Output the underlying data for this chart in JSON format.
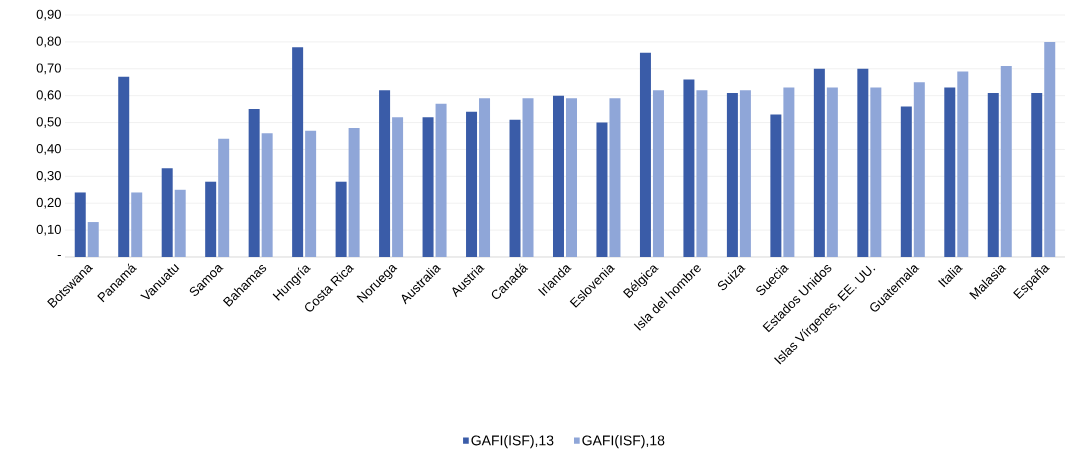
{
  "chart_data": {
    "type": "bar",
    "categories": [
      "Botswana",
      "Panamá",
      "Vanuatu",
      "Samoa",
      "Bahamas",
      "Hungría",
      "Costa Rica",
      "Noruega",
      "Australia",
      "Austria",
      "Canadá",
      "Irlanda",
      "Eslovenia",
      "Bélgica",
      "Isla del hombre",
      "Suiza",
      "Suecia",
      "Estados Unidos",
      "Islas Vírgenes, EE. UU.",
      "Guatemala",
      "Italia",
      "Malasia",
      "España"
    ],
    "series": [
      {
        "name": "GAFI(ISF),13",
        "color": "#3a5ca8",
        "values": [
          0.24,
          0.67,
          0.33,
          0.28,
          0.55,
          0.78,
          0.28,
          0.62,
          0.52,
          0.54,
          0.51,
          0.6,
          0.5,
          0.76,
          0.66,
          0.61,
          0.53,
          0.7,
          0.7,
          0.56,
          0.63,
          0.61,
          0.61
        ]
      },
      {
        "name": "GAFI(ISF),18",
        "color": "#8fa6d8",
        "values": [
          0.13,
          0.24,
          0.25,
          0.44,
          0.46,
          0.47,
          0.48,
          0.52,
          0.57,
          0.59,
          0.59,
          0.59,
          0.59,
          0.62,
          0.62,
          0.62,
          0.63,
          0.63,
          0.63,
          0.65,
          0.69,
          0.71,
          0.8
        ]
      }
    ],
    "ylim": [
      0,
      0.9
    ],
    "yticks": [
      {
        "value": 0,
        "label": "-"
      },
      {
        "value": 0.1,
        "label": "0,10"
      },
      {
        "value": 0.2,
        "label": "0,20"
      },
      {
        "value": 0.3,
        "label": "0,30"
      },
      {
        "value": 0.4,
        "label": "0,40"
      },
      {
        "value": 0.5,
        "label": "0,50"
      },
      {
        "value": 0.6,
        "label": "0,60"
      },
      {
        "value": 0.7,
        "label": "0,70"
      },
      {
        "value": 0.8,
        "label": "0,80"
      },
      {
        "value": 0.9,
        "label": "0,90"
      }
    ],
    "grid": "y",
    "legend": "bottom"
  }
}
